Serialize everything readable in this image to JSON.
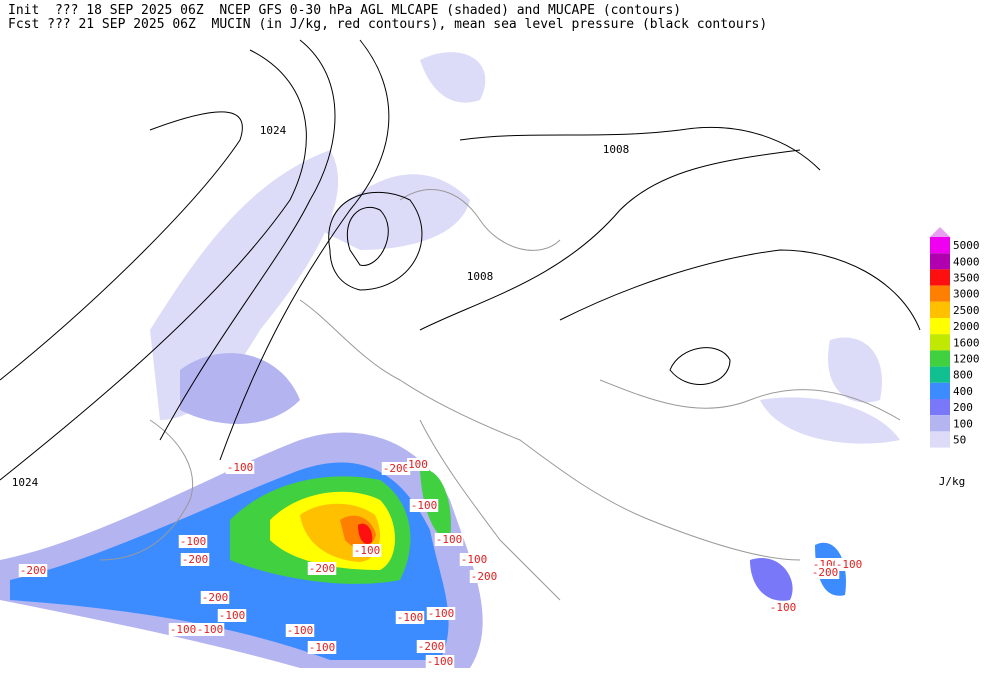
{
  "header": {
    "line1": "Init  ??? 18 SEP 2025 06Z  NCEP GFS 0-30 hPa AGL MLCAPE (shaded) and MUCAPE (contours)",
    "line2": "Fcst ??? 21 SEP 2025 06Z  MUCIN (in J/kg, red contours), mean sea level pressure (black contours)"
  },
  "colorbar": {
    "levels": [
      5000,
      4000,
      3500,
      3000,
      2500,
      2000,
      1600,
      1200,
      800,
      400,
      200,
      100,
      50
    ],
    "colors": [
      "#f000f0",
      "#b000b0",
      "#ff1010",
      "#ff8000",
      "#ffc000",
      "#ffff00",
      "#c0e800",
      "#40d040",
      "#10c090",
      "#3c8cff",
      "#7878f8",
      "#b4b4f0",
      "#dcdcf8"
    ],
    "top_color": "#e8a0f0",
    "unit": "J/kg"
  },
  "isobar_labels": [
    1024,
    1008,
    1008,
    1024
  ],
  "cin_labels": [
    -100,
    -200,
    100,
    -100,
    -100,
    -100,
    -100,
    -200,
    -200,
    -200,
    -200,
    -200,
    -100,
    -100,
    -100,
    -100,
    -100,
    -100,
    -100,
    -200,
    -100,
    -100,
    -100,
    -200,
    -100,
    -100
  ]
}
